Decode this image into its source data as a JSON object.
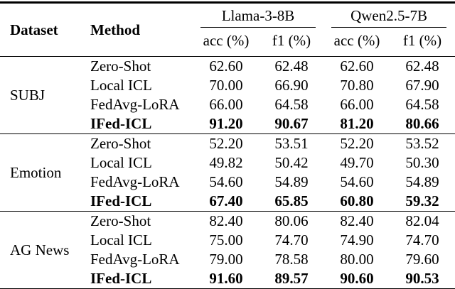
{
  "table": {
    "header": {
      "dataset": "Dataset",
      "method": "Method"
    },
    "models": [
      {
        "name": "Llama-3-8B",
        "metrics": [
          "acc (%)",
          "f1 (%)"
        ]
      },
      {
        "name": "Qwen2.5-7B",
        "metrics": [
          "acc (%)",
          "f1 (%)"
        ]
      }
    ],
    "groups": [
      {
        "dataset": "SUBJ",
        "rows": [
          {
            "method": "Zero-Shot",
            "values": [
              "62.60",
              "62.48",
              "62.60",
              "62.48"
            ]
          },
          {
            "method": "Local ICL",
            "values": [
              "70.00",
              "66.90",
              "70.80",
              "67.90"
            ]
          },
          {
            "method": "FedAvg-LoRA",
            "values": [
              "66.00",
              "64.58",
              "66.00",
              "64.58"
            ]
          },
          {
            "method": "IFed-ICL",
            "values": [
              "91.20",
              "90.67",
              "81.20",
              "80.66"
            ]
          }
        ]
      },
      {
        "dataset": "Emotion",
        "rows": [
          {
            "method": "Zero-Shot",
            "values": [
              "52.20",
              "53.51",
              "52.20",
              "53.52"
            ]
          },
          {
            "method": "Local ICL",
            "values": [
              "49.82",
              "50.42",
              "49.70",
              "50.30"
            ]
          },
          {
            "method": "FedAvg-LoRA",
            "values": [
              "54.60",
              "54.89",
              "54.60",
              "54.89"
            ]
          },
          {
            "method": "IFed-ICL",
            "values": [
              "67.40",
              "65.85",
              "60.80",
              "59.32"
            ]
          }
        ]
      },
      {
        "dataset": "AG News",
        "rows": [
          {
            "method": "Zero-Shot",
            "values": [
              "82.40",
              "80.06",
              "82.40",
              "82.04"
            ]
          },
          {
            "method": "Local ICL",
            "values": [
              "75.00",
              "74.70",
              "74.90",
              "74.70"
            ]
          },
          {
            "method": "FedAvg-LoRA",
            "values": [
              "79.00",
              "78.58",
              "80.00",
              "79.60"
            ]
          },
          {
            "method": "IFed-ICL",
            "values": [
              "91.60",
              "89.57",
              "90.60",
              "90.53"
            ]
          }
        ]
      }
    ]
  }
}
